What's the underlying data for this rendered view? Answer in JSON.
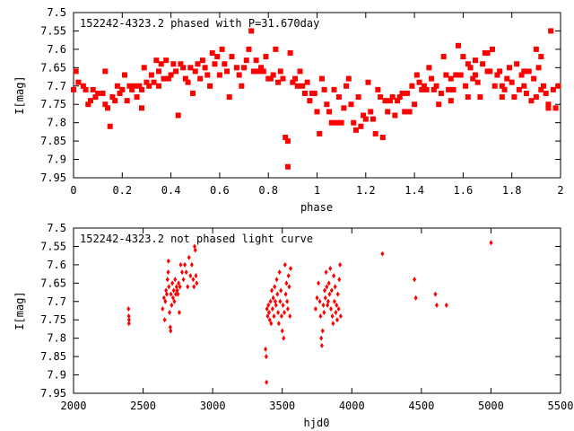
{
  "chart_data": [
    {
      "type": "scatter",
      "title": "152242-4323.2 phased with P=31.670day",
      "xlabel": "phase",
      "ylabel": "I[mag]",
      "xlim": [
        0,
        2
      ],
      "ylim": [
        7.95,
        7.5
      ],
      "y_inverted": true,
      "x_ticks": [
        0,
        0.2,
        0.4,
        0.6,
        0.8,
        1,
        1.2,
        1.4,
        1.6,
        1.8,
        2
      ],
      "y_ticks": [
        7.5,
        7.55,
        7.6,
        7.65,
        7.7,
        7.75,
        7.8,
        7.85,
        7.9,
        7.95
      ],
      "marker": "filled-square",
      "color": "#ff0000",
      "grid": false,
      "points": [
        [
          0.0,
          7.71
        ],
        [
          0.01,
          7.66
        ],
        [
          0.02,
          7.69
        ],
        [
          0.04,
          7.7
        ],
        [
          0.05,
          7.71
        ],
        [
          0.06,
          7.75
        ],
        [
          0.07,
          7.74
        ],
        [
          0.08,
          7.71
        ],
        [
          0.09,
          7.73
        ],
        [
          0.1,
          7.72
        ],
        [
          0.12,
          7.72
        ],
        [
          0.13,
          7.66
        ],
        [
          0.13,
          7.75
        ],
        [
          0.14,
          7.76
        ],
        [
          0.15,
          7.81
        ],
        [
          0.16,
          7.73
        ],
        [
          0.17,
          7.74
        ],
        [
          0.18,
          7.7
        ],
        [
          0.19,
          7.72
        ],
        [
          0.2,
          7.71
        ],
        [
          0.21,
          7.67
        ],
        [
          0.22,
          7.74
        ],
        [
          0.23,
          7.7
        ],
        [
          0.24,
          7.71
        ],
        [
          0.25,
          7.7
        ],
        [
          0.26,
          7.73
        ],
        [
          0.27,
          7.7
        ],
        [
          0.28,
          7.71
        ],
        [
          0.28,
          7.76
        ],
        [
          0.29,
          7.65
        ],
        [
          0.3,
          7.69
        ],
        [
          0.31,
          7.7
        ],
        [
          0.32,
          7.67
        ],
        [
          0.33,
          7.69
        ],
        [
          0.34,
          7.63
        ],
        [
          0.35,
          7.66
        ],
        [
          0.35,
          7.7
        ],
        [
          0.36,
          7.64
        ],
        [
          0.37,
          7.68
        ],
        [
          0.38,
          7.63
        ],
        [
          0.39,
          7.68
        ],
        [
          0.4,
          7.67
        ],
        [
          0.41,
          7.64
        ],
        [
          0.42,
          7.66
        ],
        [
          0.43,
          7.78
        ],
        [
          0.44,
          7.64
        ],
        [
          0.45,
          7.65
        ],
        [
          0.46,
          7.68
        ],
        [
          0.47,
          7.69
        ],
        [
          0.48,
          7.65
        ],
        [
          0.49,
          7.72
        ],
        [
          0.5,
          7.66
        ],
        [
          0.51,
          7.64
        ],
        [
          0.52,
          7.68
        ],
        [
          0.53,
          7.63
        ],
        [
          0.54,
          7.65
        ],
        [
          0.55,
          7.67
        ],
        [
          0.56,
          7.7
        ],
        [
          0.57,
          7.61
        ],
        [
          0.58,
          7.64
        ],
        [
          0.59,
          7.62
        ],
        [
          0.6,
          7.67
        ],
        [
          0.61,
          7.6
        ],
        [
          0.62,
          7.64
        ],
        [
          0.63,
          7.66
        ],
        [
          0.64,
          7.73
        ],
        [
          0.65,
          7.62
        ],
        [
          0.67,
          7.65
        ],
        [
          0.68,
          7.67
        ],
        [
          0.69,
          7.7
        ],
        [
          0.7,
          7.65
        ],
        [
          0.71,
          7.63
        ],
        [
          0.72,
          7.6
        ],
        [
          0.73,
          7.55
        ],
        [
          0.74,
          7.66
        ],
        [
          0.75,
          7.63
        ],
        [
          0.76,
          7.66
        ],
        [
          0.77,
          7.65
        ],
        [
          0.78,
          7.66
        ],
        [
          0.79,
          7.62
        ],
        [
          0.8,
          7.68
        ],
        [
          0.81,
          7.68
        ],
        [
          0.82,
          7.67
        ],
        [
          0.83,
          7.6
        ],
        [
          0.84,
          7.69
        ],
        [
          0.85,
          7.66
        ],
        [
          0.86,
          7.68
        ],
        [
          0.87,
          7.84
        ],
        [
          0.88,
          7.85
        ],
        [
          0.88,
          7.92
        ],
        [
          0.89,
          7.61
        ],
        [
          0.9,
          7.69
        ],
        [
          0.91,
          7.68
        ],
        [
          0.92,
          7.7
        ],
        [
          0.93,
          7.66
        ],
        [
          0.94,
          7.7
        ],
        [
          0.95,
          7.72
        ],
        [
          0.96,
          7.69
        ],
        [
          0.97,
          7.74
        ],
        [
          0.98,
          7.72
        ],
        [
          0.99,
          7.72
        ],
        [
          1.0,
          7.77
        ],
        [
          1.01,
          7.83
        ],
        [
          1.02,
          7.68
        ],
        [
          1.03,
          7.71
        ],
        [
          1.04,
          7.75
        ],
        [
          1.05,
          7.77
        ],
        [
          1.06,
          7.8
        ],
        [
          1.07,
          7.71
        ],
        [
          1.08,
          7.8
        ],
        [
          1.09,
          7.73
        ],
        [
          1.1,
          7.8
        ],
        [
          1.11,
          7.76
        ],
        [
          1.12,
          7.7
        ],
        [
          1.13,
          7.68
        ],
        [
          1.14,
          7.75
        ],
        [
          1.15,
          7.8
        ],
        [
          1.16,
          7.82
        ],
        [
          1.17,
          7.73
        ],
        [
          1.18,
          7.81
        ],
        [
          1.19,
          7.78
        ],
        [
          1.2,
          7.79
        ],
        [
          1.21,
          7.69
        ],
        [
          1.22,
          7.77
        ],
        [
          1.23,
          7.79
        ],
        [
          1.24,
          7.83
        ],
        [
          1.25,
          7.71
        ],
        [
          1.26,
          7.73
        ],
        [
          1.27,
          7.84
        ],
        [
          1.28,
          7.74
        ],
        [
          1.29,
          7.77
        ],
        [
          1.3,
          7.74
        ],
        [
          1.31,
          7.73
        ],
        [
          1.32,
          7.78
        ],
        [
          1.33,
          7.74
        ],
        [
          1.34,
          7.73
        ],
        [
          1.35,
          7.72
        ],
        [
          1.36,
          7.77
        ],
        [
          1.37,
          7.72
        ],
        [
          1.38,
          7.77
        ],
        [
          1.39,
          7.7
        ],
        [
          1.4,
          7.75
        ],
        [
          1.41,
          7.67
        ],
        [
          1.42,
          7.69
        ],
        [
          1.43,
          7.71
        ],
        [
          1.44,
          7.7
        ],
        [
          1.45,
          7.71
        ],
        [
          1.46,
          7.65
        ],
        [
          1.47,
          7.68
        ],
        [
          1.48,
          7.71
        ],
        [
          1.49,
          7.7
        ],
        [
          1.5,
          7.75
        ],
        [
          1.51,
          7.72
        ],
        [
          1.52,
          7.62
        ],
        [
          1.53,
          7.67
        ],
        [
          1.54,
          7.71
        ],
        [
          1.55,
          7.68
        ],
        [
          1.56,
          7.71
        ],
        [
          1.57,
          7.67
        ],
        [
          1.58,
          7.59
        ],
        [
          1.59,
          7.67
        ],
        [
          1.6,
          7.62
        ],
        [
          1.61,
          7.7
        ],
        [
          1.62,
          7.73
        ],
        [
          1.63,
          7.65
        ],
        [
          1.64,
          7.68
        ],
        [
          1.65,
          7.67
        ],
        [
          1.66,
          7.69
        ],
        [
          1.67,
          7.73
        ],
        [
          1.68,
          7.64
        ],
        [
          1.69,
          7.61
        ],
        [
          1.7,
          7.66
        ],
        [
          1.71,
          7.66
        ],
        [
          1.72,
          7.6
        ],
        [
          1.73,
          7.7
        ],
        [
          1.74,
          7.67
        ],
        [
          1.75,
          7.66
        ],
        [
          1.76,
          7.7
        ],
        [
          1.77,
          7.71
        ],
        [
          1.78,
          7.68
        ],
        [
          1.79,
          7.65
        ],
        [
          1.8,
          7.69
        ],
        [
          1.81,
          7.73
        ],
        [
          1.82,
          7.64
        ],
        [
          1.83,
          7.71
        ],
        [
          1.84,
          7.67
        ],
        [
          1.85,
          7.7
        ],
        [
          1.86,
          7.72
        ],
        [
          1.87,
          7.66
        ],
        [
          1.88,
          7.74
        ],
        [
          1.89,
          7.68
        ],
        [
          1.9,
          7.73
        ],
        [
          1.91,
          7.65
        ],
        [
          1.92,
          7.71
        ],
        [
          1.93,
          7.7
        ],
        [
          1.94,
          7.72
        ],
        [
          1.95,
          7.75
        ],
        [
          1.96,
          7.55
        ],
        [
          1.97,
          7.71
        ],
        [
          1.98,
          7.76
        ],
        [
          1.99,
          7.7
        ],
        [
          1.95,
          7.76
        ],
        [
          1.92,
          7.62
        ],
        [
          1.9,
          7.6
        ],
        [
          1.85,
          7.66
        ],
        [
          1.76,
          7.73
        ],
        [
          1.7,
          7.61
        ],
        [
          1.65,
          7.63
        ],
        [
          1.62,
          7.64
        ],
        [
          1.55,
          7.74
        ]
      ]
    },
    {
      "type": "scatter",
      "title": "152242-4323.2 not phased light curve",
      "xlabel": "hjd0",
      "ylabel": "I[mag]",
      "xlim": [
        2000,
        5500
      ],
      "ylim": [
        7.95,
        7.5
      ],
      "y_inverted": true,
      "x_ticks": [
        2000,
        2500,
        3000,
        3500,
        4000,
        4500,
        5000,
        5500
      ],
      "y_ticks": [
        7.5,
        7.55,
        7.6,
        7.65,
        7.7,
        7.75,
        7.8,
        7.85,
        7.9,
        7.95
      ],
      "marker": "diamond",
      "color": "#ff0000",
      "grid": false,
      "points": [
        [
          2395,
          7.72
        ],
        [
          2397,
          7.74
        ],
        [
          2398,
          7.76
        ],
        [
          2399,
          7.75
        ],
        [
          2640,
          7.72
        ],
        [
          2650,
          7.69
        ],
        [
          2655,
          7.75
        ],
        [
          2660,
          7.7
        ],
        [
          2665,
          7.67
        ],
        [
          2670,
          7.68
        ],
        [
          2675,
          7.64
        ],
        [
          2680,
          7.62
        ],
        [
          2682,
          7.59
        ],
        [
          2685,
          7.66
        ],
        [
          2690,
          7.73
        ],
        [
          2695,
          7.77
        ],
        [
          2698,
          7.78
        ],
        [
          2700,
          7.68
        ],
        [
          2705,
          7.71
        ],
        [
          2710,
          7.65
        ],
        [
          2715,
          7.69
        ],
        [
          2720,
          7.67
        ],
        [
          2725,
          7.7
        ],
        [
          2730,
          7.64
        ],
        [
          2735,
          7.68
        ],
        [
          2740,
          7.66
        ],
        [
          2745,
          7.67
        ],
        [
          2750,
          7.68
        ],
        [
          2755,
          7.65
        ],
        [
          2760,
          7.73
        ],
        [
          2765,
          7.66
        ],
        [
          2770,
          7.6
        ],
        [
          2780,
          7.62
        ],
        [
          2790,
          7.64
        ],
        [
          2800,
          7.6
        ],
        [
          2810,
          7.62
        ],
        [
          2820,
          7.66
        ],
        [
          2830,
          7.58
        ],
        [
          2840,
          7.63
        ],
        [
          2850,
          7.6
        ],
        [
          2860,
          7.64
        ],
        [
          2865,
          7.66
        ],
        [
          2870,
          7.55
        ],
        [
          2875,
          7.56
        ],
        [
          2880,
          7.63
        ],
        [
          2885,
          7.65
        ],
        [
          3380,
          7.83
        ],
        [
          3385,
          7.85
        ],
        [
          3387,
          7.92
        ],
        [
          3390,
          7.72
        ],
        [
          3395,
          7.74
        ],
        [
          3400,
          7.71
        ],
        [
          3405,
          7.73
        ],
        [
          3410,
          7.75
        ],
        [
          3415,
          7.7
        ],
        [
          3420,
          7.76
        ],
        [
          3425,
          7.67
        ],
        [
          3430,
          7.72
        ],
        [
          3435,
          7.69
        ],
        [
          3440,
          7.74
        ],
        [
          3445,
          7.66
        ],
        [
          3450,
          7.7
        ],
        [
          3455,
          7.71
        ],
        [
          3460,
          7.64
        ],
        [
          3465,
          7.68
        ],
        [
          3470,
          7.73
        ],
        [
          3475,
          7.76
        ],
        [
          3480,
          7.62
        ],
        [
          3485,
          7.7
        ],
        [
          3490,
          7.67
        ],
        [
          3495,
          7.74
        ],
        [
          3500,
          7.78
        ],
        [
          3505,
          7.71
        ],
        [
          3510,
          7.8
        ],
        [
          3515,
          7.73
        ],
        [
          3520,
          7.6
        ],
        [
          3525,
          7.68
        ],
        [
          3530,
          7.65
        ],
        [
          3535,
          7.7
        ],
        [
          3540,
          7.72
        ],
        [
          3545,
          7.63
        ],
        [
          3550,
          7.66
        ],
        [
          3555,
          7.74
        ],
        [
          3560,
          7.61
        ],
        [
          3740,
          7.72
        ],
        [
          3750,
          7.69
        ],
        [
          3760,
          7.65
        ],
        [
          3770,
          7.7
        ],
        [
          3775,
          7.74
        ],
        [
          3780,
          7.8
        ],
        [
          3785,
          7.82
        ],
        [
          3790,
          7.78
        ],
        [
          3795,
          7.71
        ],
        [
          3800,
          7.73
        ],
        [
          3805,
          7.67
        ],
        [
          3810,
          7.69
        ],
        [
          3815,
          7.62
        ],
        [
          3820,
          7.66
        ],
        [
          3825,
          7.71
        ],
        [
          3830,
          7.7
        ],
        [
          3835,
          7.65
        ],
        [
          3840,
          7.68
        ],
        [
          3845,
          7.61
        ],
        [
          3850,
          7.72
        ],
        [
          3855,
          7.67
        ],
        [
          3860,
          7.74
        ],
        [
          3865,
          7.76
        ],
        [
          3870,
          7.63
        ],
        [
          3875,
          7.7
        ],
        [
          3880,
          7.66
        ],
        [
          3885,
          7.73
        ],
        [
          3890,
          7.71
        ],
        [
          3895,
          7.75
        ],
        [
          3900,
          7.68
        ],
        [
          3905,
          7.72
        ],
        [
          3910,
          7.64
        ],
        [
          3915,
          7.6
        ],
        [
          3920,
          7.74
        ],
        [
          4220,
          7.57
        ],
        [
          4450,
          7.64
        ],
        [
          4460,
          7.69
        ],
        [
          4600,
          7.68
        ],
        [
          4610,
          7.71
        ],
        [
          4680,
          7.71
        ],
        [
          5000,
          7.54
        ]
      ]
    }
  ]
}
